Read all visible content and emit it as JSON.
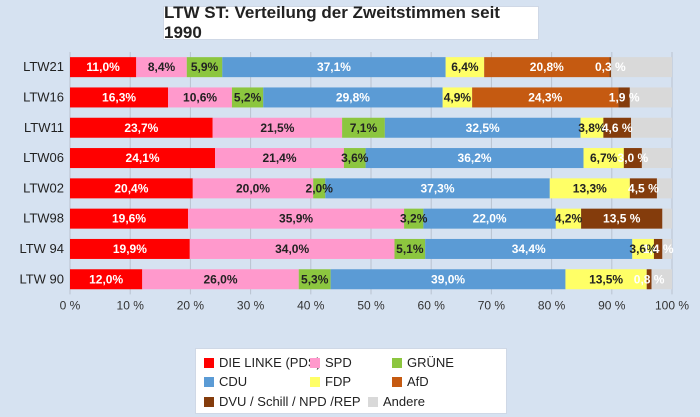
{
  "chart_data": {
    "type": "bar",
    "orientation": "horizontal",
    "stacked": true,
    "title": "LTW ST: Verteilung der Zweitstimmen seit 1990",
    "categories": [
      "LTW21",
      "LTW16",
      "LTW11",
      "LTW06",
      "LTW02",
      "LTW98",
      "LTW 94",
      "LTW 90"
    ],
    "xlim": [
      0,
      100
    ],
    "xticks": [
      "0 %",
      "10 %",
      "20 %",
      "30 %",
      "40 %",
      "50 %",
      "60 %",
      "70 %",
      "80 %",
      "90 %",
      "100 %"
    ],
    "grid": true,
    "legend_position": "bottom",
    "series": [
      {
        "name": "DIE LINKE (PDS)",
        "color": "#ff0000",
        "values": [
          11.0,
          16.3,
          23.7,
          24.1,
          20.4,
          19.6,
          19.9,
          12.0
        ],
        "labels": [
          "11,0%",
          "16,3%",
          "23,7%",
          "24,1%",
          "20,4%",
          "19,6%",
          "19,9%",
          "12,0%"
        ]
      },
      {
        "name": "SPD",
        "color": "#ff99cc",
        "values": [
          8.4,
          10.6,
          21.5,
          21.4,
          20.0,
          35.9,
          34.0,
          26.0
        ],
        "labels": [
          "8,4%",
          "10,6%",
          "21,5%",
          "21,4%",
          "20,0%",
          "35,9%",
          "34,0%",
          "26,0%"
        ]
      },
      {
        "name": "GRÜNE",
        "color": "#8cc63f",
        "values": [
          5.9,
          5.2,
          7.1,
          3.6,
          2.0,
          3.2,
          5.1,
          5.3
        ],
        "labels": [
          "5,9%",
          "5,2%",
          "7,1%",
          "3,6%",
          "2,0%",
          "3,2%",
          "5,1%",
          "5,3%"
        ]
      },
      {
        "name": "CDU",
        "color": "#5b9bd5",
        "values": [
          37.1,
          29.8,
          32.5,
          36.2,
          37.3,
          22.0,
          34.4,
          39.0
        ],
        "labels": [
          "37,1%",
          "29,8%",
          "32,5%",
          "36,2%",
          "37,3%",
          "22,0%",
          "34,4%",
          "39,0%"
        ]
      },
      {
        "name": "FDP",
        "color": "#ffff66",
        "values": [
          6.4,
          4.9,
          3.8,
          6.7,
          13.3,
          4.2,
          3.6,
          13.5
        ],
        "labels": [
          "6,4%",
          "4,9%",
          "3,8%",
          "6,7%",
          "13,3%",
          "4,2%",
          "3,6%",
          "13,5%"
        ]
      },
      {
        "name": "AfD",
        "color": "#c55a11",
        "values": [
          20.8,
          24.3,
          0,
          0,
          0,
          0,
          0,
          0
        ],
        "labels": [
          "20,8%",
          "24,3%",
          "",
          "",
          "",
          "",
          "",
          ""
        ]
      },
      {
        "name": "DVU / Schill / NPD /REP",
        "color": "#843c0c",
        "values": [
          0.3,
          1.9,
          4.6,
          3.0,
          4.5,
          13.5,
          1.4,
          0.8
        ],
        "labels": [
          "0,3 %",
          "1,9 %",
          "4,6 %",
          "3,0 %",
          "4,5 %",
          "13,5 %",
          "1,4 %",
          "0,8 %"
        ]
      },
      {
        "name": "Andere",
        "color": "#d9d9d9",
        "values": [
          10.1,
          7.0,
          6.8,
          5.0,
          2.5,
          1.6,
          1.6,
          3.4
        ],
        "labels": [
          "",
          "",
          "",
          "",
          "",
          "",
          "",
          ""
        ]
      }
    ]
  }
}
